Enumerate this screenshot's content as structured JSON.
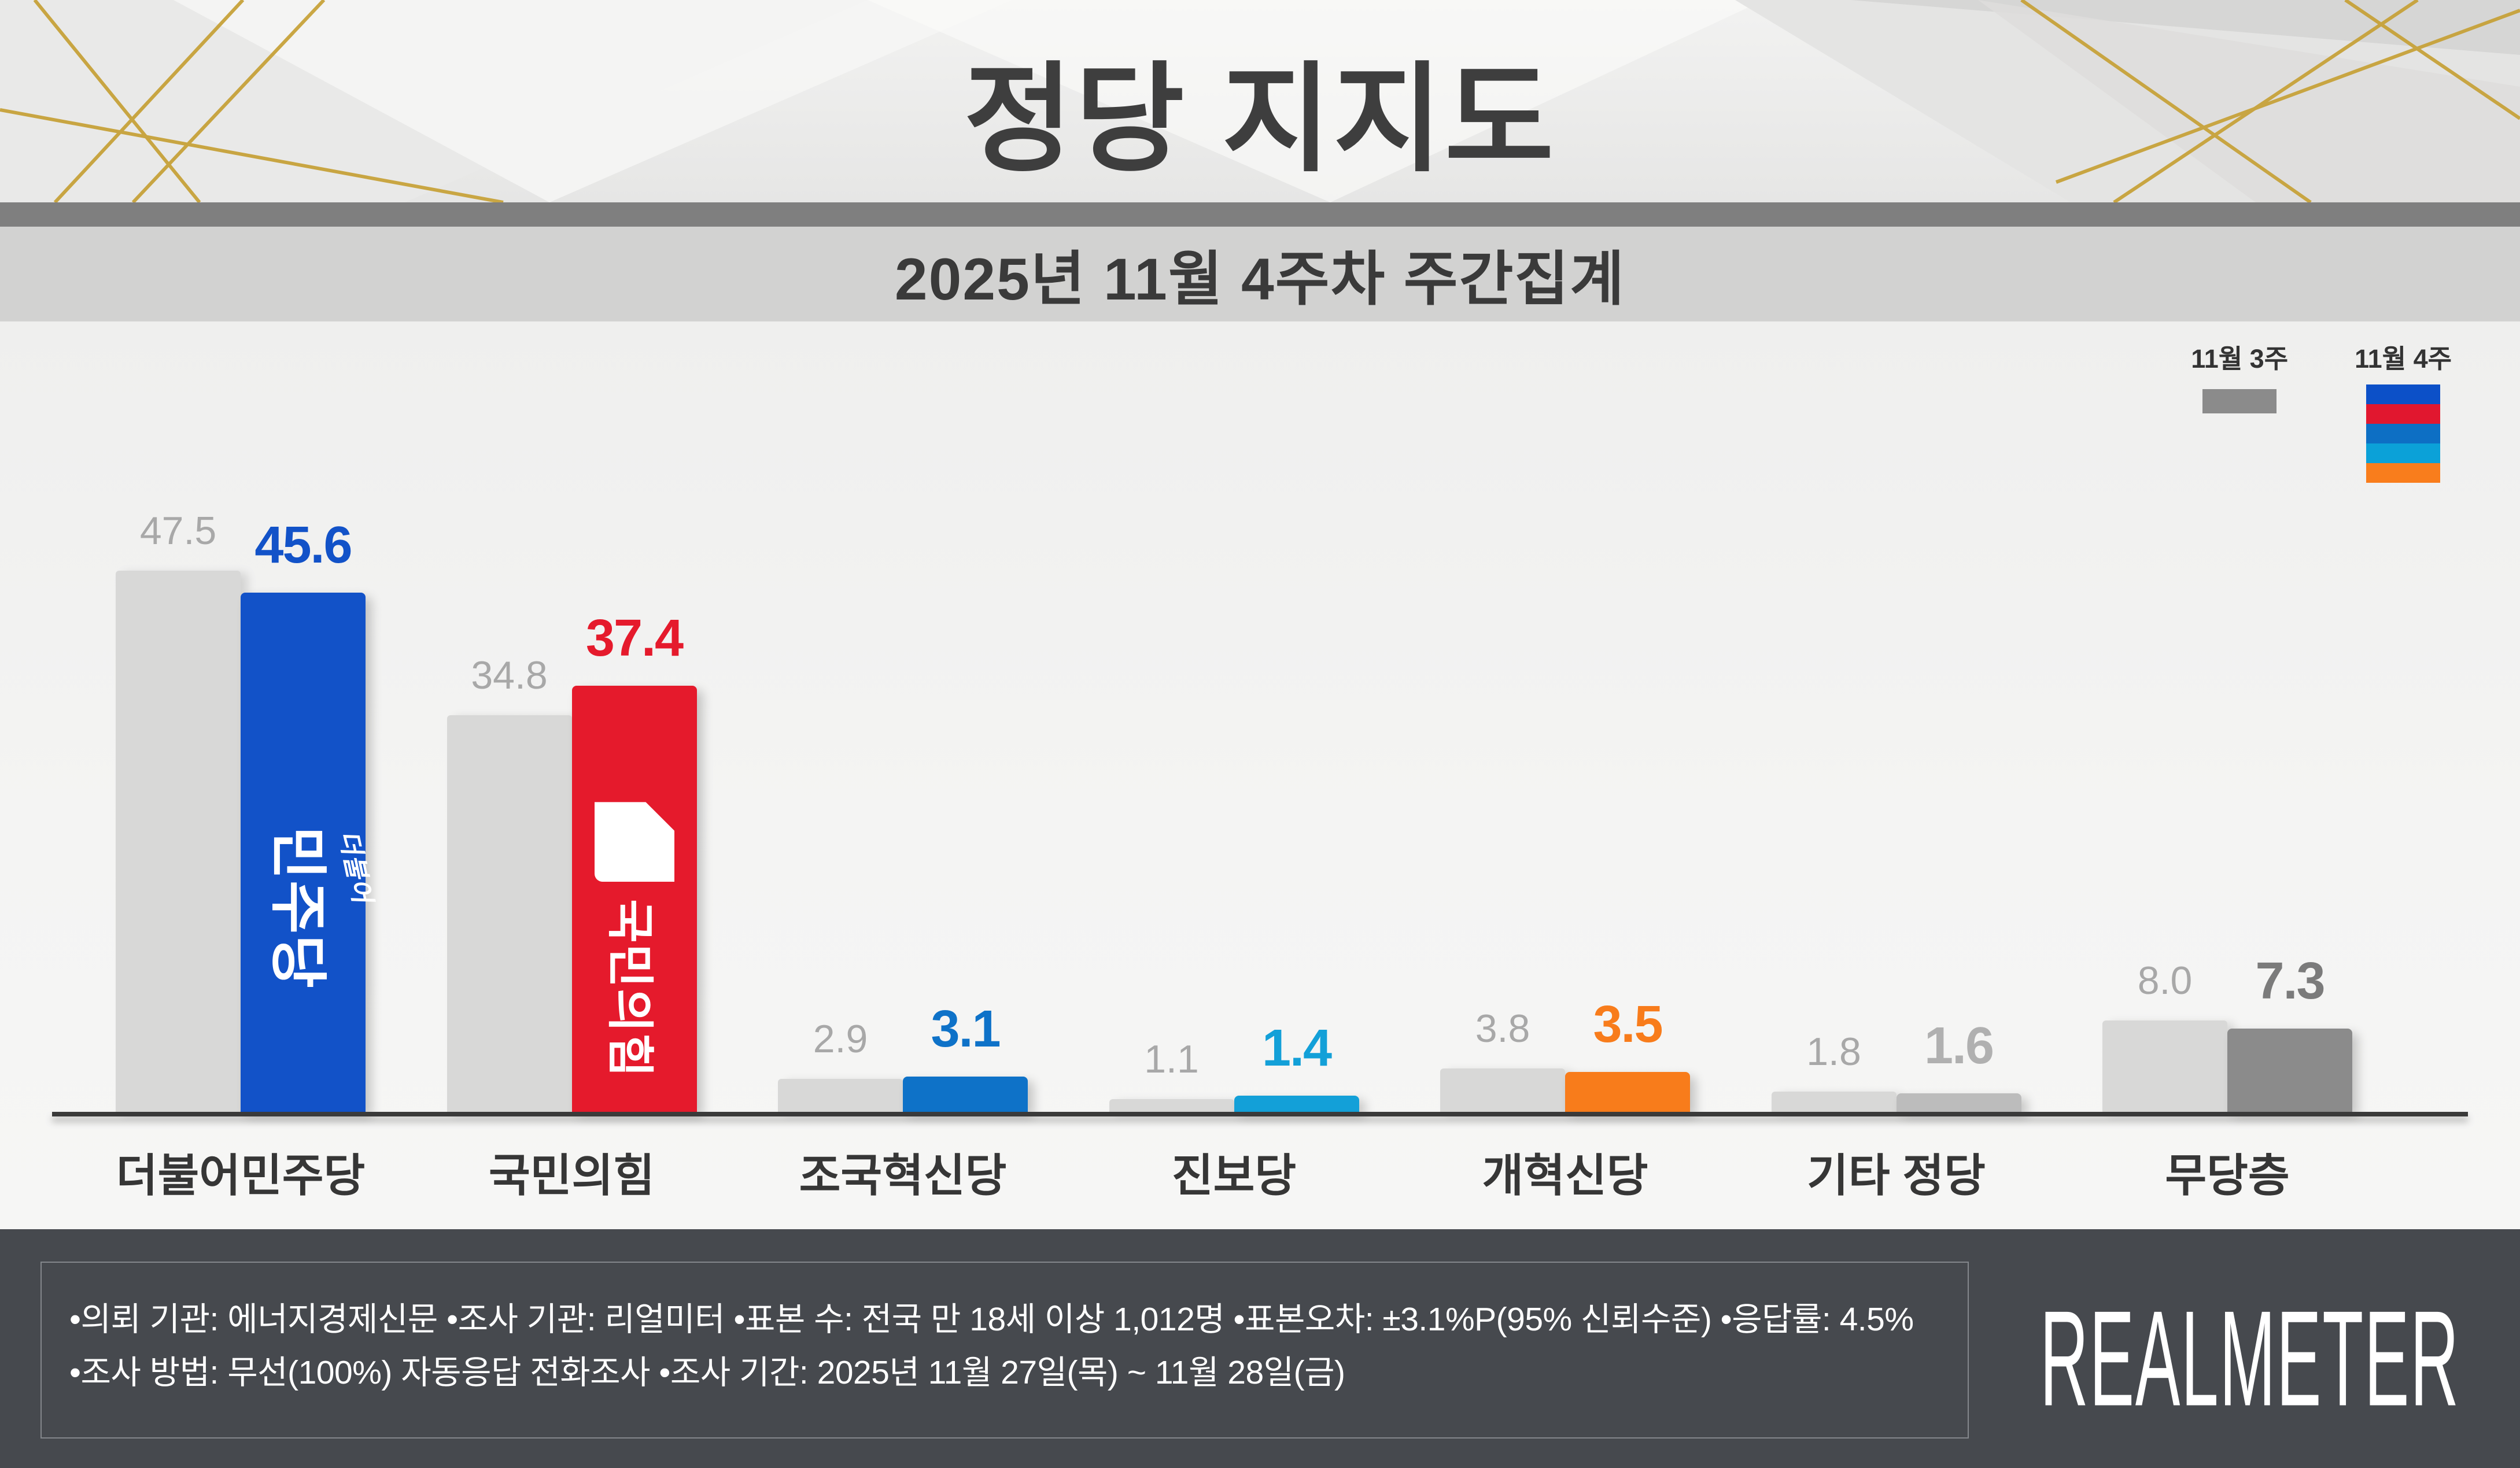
{
  "header": {
    "title": "정당 지지도"
  },
  "subtitle": "2025년 11월 4주차 주간집계",
  "legend": {
    "previous_label": "11월 3주",
    "current_label": "11월 4주",
    "previous_swatch_color": "#8b8b8b",
    "current_swatch_colors": [
      "#0c50c8",
      "#e1172f",
      "#0d6fc4",
      "#0ba1d8",
      "#f97d1c"
    ]
  },
  "chart_data": {
    "type": "bar",
    "title": "정당 지지도",
    "subtitle": "2025년 11월 4주차 주간집계",
    "unit": "%",
    "ylim": [
      0,
      50
    ],
    "grid": false,
    "legend_position": "top-right",
    "categories": [
      "더불어민주당",
      "국민의힘",
      "조국혁신당",
      "진보당",
      "개혁신당",
      "기타 정당",
      "무당층"
    ],
    "series": [
      {
        "name": "11월 3주",
        "values": [
          47.5,
          34.8,
          2.9,
          1.1,
          3.8,
          1.8,
          8.0
        ]
      },
      {
        "name": "11월 4주",
        "values": [
          45.6,
          37.4,
          3.1,
          1.4,
          3.5,
          1.6,
          7.3
        ]
      }
    ],
    "prev_bar_color": "#d8d8d7",
    "prev_value_color": "#a8a8a8",
    "current_bar_colors": [
      "#1252c8",
      "#e51a2c",
      "#0e72c8",
      "#13a0d8",
      "#f87c1b",
      "#bcbcbc",
      "#8b8b8b"
    ],
    "current_value_colors": [
      "#1252c8",
      "#e51a2c",
      "#0e72c8",
      "#13a0d8",
      "#f87c1b",
      "#b0b0b0",
      "#7b7b7b"
    ],
    "bar_logos": {
      "0": {
        "script": "더불어",
        "main": "민주당"
      },
      "1": {
        "symbol": "ppp-speech-bubble",
        "main": "국민의힘"
      }
    }
  },
  "footer": {
    "line1": "•의뢰 기관: 에너지경제신문  •조사 기관: 리얼미터 •표본 수: 전국 만 18세 이상 1,012명 •표본오차: ±3.1%P(95% 신뢰수준) •응답률: 4.5%",
    "line2": "•조사 방법: 무선(100%) 자동응답 전화조사 •조사 기간: 2025년 11월 27일(목) ~ 11월 28일(금)",
    "logo": "REALMETER"
  }
}
